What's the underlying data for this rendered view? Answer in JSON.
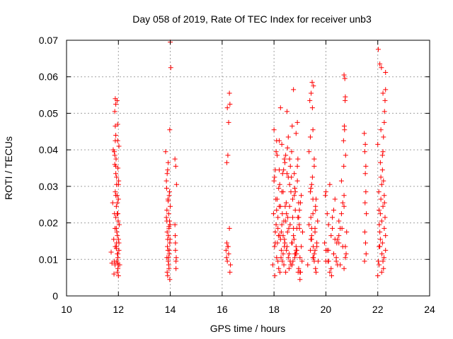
{
  "chart_data": {
    "type": "scatter",
    "title": "Day 058 of 2019, Rate Of TEC Index for receiver unb3",
    "xlabel": "GPS time / hours",
    "ylabel": "ROTI / TECUs",
    "xlim": [
      10,
      24
    ],
    "ylim": [
      0,
      0.07
    ],
    "x_ticks": [
      "10",
      "12",
      "14",
      "16",
      "18",
      "20",
      "22",
      "24"
    ],
    "y_ticks": [
      "0",
      "0.01",
      "0.02",
      "0.03",
      "0.04",
      "0.05",
      "0.06",
      "0.07"
    ],
    "grid": true,
    "marker": "+",
    "color": "#ff0000",
    "series": [
      {
        "name": "ROTI",
        "x": [
          11.72,
          11.75,
          11.78,
          11.8,
          11.82,
          11.83,
          11.85,
          11.86,
          11.87,
          11.88,
          11.9,
          11.9,
          11.92,
          11.93,
          11.95,
          11.96,
          11.97,
          11.98,
          12.0,
          12.0,
          12.02,
          12.03,
          12.05,
          11.86,
          11.88,
          11.9,
          11.92,
          11.94,
          11.96,
          11.98,
          12.0,
          12.02,
          11.84,
          11.86,
          11.88,
          11.9,
          11.92,
          11.94,
          11.96,
          11.98,
          12.0,
          12.02,
          11.88,
          11.9,
          11.92,
          11.95,
          11.98,
          12.0,
          11.9,
          11.93,
          11.96,
          11.99,
          11.85,
          11.88,
          11.91,
          11.95,
          11.97,
          12.01,
          11.87,
          11.93,
          11.96,
          11.98,
          13.82,
          13.85,
          13.87,
          13.88,
          13.9,
          13.92,
          13.94,
          13.95,
          13.96,
          13.98,
          14.0,
          14.02,
          13.86,
          13.88,
          13.9,
          13.92,
          13.94,
          13.96,
          13.98,
          14.0,
          13.85,
          13.87,
          13.89,
          13.91,
          13.93,
          13.95,
          13.97,
          13.99,
          13.88,
          13.9,
          13.93,
          13.96,
          13.99,
          13.87,
          13.91,
          13.95,
          13.98,
          13.92,
          14.18,
          14.2,
          14.22,
          14.24,
          14.2,
          14.22,
          14.18,
          14.23,
          14.21,
          14.19,
          13.97,
          16.15,
          16.18,
          16.2,
          16.22,
          16.25,
          16.28,
          16.18,
          16.22,
          16.25,
          16.2,
          16.3,
          16.28,
          16.32,
          16.17,
          16.23,
          16.3,
          17.95,
          17.98,
          18.0,
          18.02,
          18.05,
          18.08,
          18.1,
          18.12,
          18.15,
          18.18,
          18.2,
          18.22,
          18.25,
          18.28,
          18.3,
          18.32,
          18.35,
          18.38,
          18.4,
          18.42,
          18.45,
          18.48,
          18.5,
          18.52,
          18.55,
          18.58,
          18.6,
          18.62,
          18.65,
          18.68,
          18.7,
          18.72,
          18.75,
          18.78,
          18.8,
          18.82,
          18.85,
          18.88,
          18.9,
          18.92,
          18.95,
          18.98,
          19.0,
          19.02,
          19.05,
          19.08,
          19.1,
          18.0,
          18.05,
          18.1,
          18.15,
          18.2,
          18.25,
          18.3,
          18.35,
          18.4,
          18.45,
          18.5,
          18.55,
          18.6,
          18.65,
          18.7,
          18.75,
          18.8,
          18.85,
          18.9,
          18.95,
          19.0,
          19.05,
          18.02,
          18.07,
          18.12,
          18.17,
          18.22,
          18.27,
          18.32,
          18.37,
          18.42,
          18.47,
          18.52,
          18.57,
          18.62,
          18.67,
          18.72,
          18.77,
          18.82,
          18.87,
          18.92,
          18.97,
          19.02,
          18.03,
          18.08,
          18.13,
          18.18,
          18.23,
          18.28,
          18.33,
          18.38,
          18.43,
          18.48,
          18.53,
          18.58,
          18.63,
          18.68,
          18.73,
          18.78,
          18.83,
          18.88,
          18.93,
          18.98,
          18.05,
          18.15,
          18.25,
          18.35,
          18.45,
          18.55,
          18.65,
          18.75,
          18.85,
          18.95,
          18.1,
          18.3,
          18.5,
          18.7,
          18.9,
          18.2,
          18.4,
          18.6,
          18.8,
          19.0,
          19.3,
          19.35,
          19.4,
          19.42,
          19.45,
          19.48,
          19.5,
          19.52,
          19.55,
          19.58,
          19.6,
          19.62,
          19.65,
          19.68,
          19.7,
          19.35,
          19.4,
          19.45,
          19.5,
          19.55,
          19.6,
          19.65,
          19.38,
          19.42,
          19.48,
          19.52,
          19.58,
          19.62,
          19.4,
          19.45,
          19.5,
          19.55,
          19.6,
          19.42,
          19.5,
          19.58,
          19.43,
          19.47,
          19.51,
          19.55,
          19.45,
          19.95,
          20.0,
          20.05,
          20.1,
          20.15,
          20.2,
          20.25,
          20.3,
          20.35,
          20.4,
          20.45,
          20.5,
          20.55,
          20.6,
          20.65,
          20.7,
          20.75,
          20.8,
          20.0,
          20.1,
          20.2,
          20.3,
          20.4,
          20.5,
          20.6,
          20.7,
          20.05,
          20.15,
          20.25,
          20.35,
          20.45,
          20.55,
          20.65,
          20.75,
          20.1,
          20.3,
          20.5,
          20.7,
          19.98,
          20.22,
          20.42,
          20.62,
          20.78,
          20.68,
          20.72,
          20.74,
          20.7,
          20.73,
          20.76,
          20.69,
          20.71,
          20.75,
          20.0,
          20.08,
          21.48,
          21.5,
          21.52,
          21.54,
          21.56,
          21.5,
          21.53,
          21.55,
          21.49,
          21.51,
          21.54,
          21.52,
          22.0,
          22.02,
          22.05,
          22.08,
          22.1,
          22.12,
          22.15,
          22.18,
          22.2,
          22.22,
          22.25,
          22.28,
          22.3,
          22.05,
          22.1,
          22.15,
          22.2,
          22.25,
          22.3,
          22.02,
          22.08,
          22.14,
          22.2,
          22.26,
          22.04,
          22.12,
          22.18,
          22.24,
          22.06,
          22.16,
          22.22,
          22.28,
          22.0,
          22.1,
          22.2,
          22.3,
          22.05,
          22.15,
          22.25,
          22.08,
          22.12,
          22.18,
          22.22,
          22.26,
          22.3
        ],
        "y": [
          0.012,
          0.009,
          0.0255,
          0.04,
          0.0155,
          0.006,
          0.0095,
          0.036,
          0.0185,
          0.054,
          0.0275,
          0.044,
          0.013,
          0.0305,
          0.0225,
          0.009,
          0.047,
          0.035,
          0.0155,
          0.0265,
          0.041,
          0.0195,
          0.0085,
          0.0505,
          0.0425,
          0.0335,
          0.0245,
          0.0175,
          0.0115,
          0.0075,
          0.0055,
          0.0145,
          0.0395,
          0.0385,
          0.0285,
          0.0215,
          0.0135,
          0.0095,
          0.0065,
          0.0225,
          0.0305,
          0.0125,
          0.0465,
          0.0355,
          0.0185,
          0.0275,
          0.0105,
          0.0085,
          0.0525,
          0.0325,
          0.0165,
          0.0205,
          0.0225,
          0.0135,
          0.0375,
          0.0535,
          0.0425,
          0.0315,
          0.0085,
          0.0145,
          0.0255,
          0.0115,
          0.0395,
          0.0215,
          0.0105,
          0.0335,
          0.0155,
          0.026,
          0.0085,
          0.019,
          0.0125,
          0.0455,
          0.0695,
          0.0625,
          0.0295,
          0.0175,
          0.0055,
          0.0365,
          0.0225,
          0.0115,
          0.0145,
          0.0245,
          0.0315,
          0.0205,
          0.0135,
          0.0265,
          0.0165,
          0.0075,
          0.0285,
          0.0195,
          0.0065,
          0.0345,
          0.0105,
          0.0275,
          0.0155,
          0.0235,
          0.0125,
          0.0185,
          0.0045,
          0.0095,
          0.0375,
          0.0145,
          0.0095,
          0.0305,
          0.0125,
          0.0075,
          0.0195,
          0.0105,
          0.0355,
          0.0165,
          0.0205,
          0.0125,
          0.0145,
          0.0095,
          0.0135,
          0.0115,
          0.0185,
          0.0365,
          0.0385,
          0.0475,
          0.0515,
          0.0525,
          0.0555,
          0.0085,
          0.0105,
          0.0135,
          0.0065,
          0.0085,
          0.0225,
          0.0455,
          0.0325,
          0.0145,
          0.0395,
          0.0105,
          0.0265,
          0.0185,
          0.0075,
          0.0345,
          0.0165,
          0.0245,
          0.0125,
          0.0415,
          0.0095,
          0.0285,
          0.0205,
          0.0135,
          0.0365,
          0.0065,
          0.0225,
          0.0505,
          0.0175,
          0.0435,
          0.0115,
          0.0305,
          0.0195,
          0.0085,
          0.0395,
          0.0145,
          0.0265,
          0.0165,
          0.0335,
          0.0105,
          0.0235,
          0.0445,
          0.0125,
          0.0315,
          0.0215,
          0.0075,
          0.0185,
          0.0045,
          0.0255,
          0.0135,
          0.0095,
          0.0175,
          0.0315,
          0.0175,
          0.0235,
          0.0095,
          0.0425,
          0.0155,
          0.0285,
          0.0115,
          0.0375,
          0.0205,
          0.0135,
          0.0325,
          0.0245,
          0.0085,
          0.0465,
          0.0185,
          0.0295,
          0.0125,
          0.0355,
          0.0215,
          0.0105,
          0.0275,
          0.0135,
          0.0265,
          0.0385,
          0.0165,
          0.0305,
          0.0105,
          0.0225,
          0.0345,
          0.0145,
          0.0255,
          0.0405,
          0.0185,
          0.0095,
          0.0325,
          0.0215,
          0.0155,
          0.0285,
          0.0115,
          0.0375,
          0.0195,
          0.0065,
          0.0055,
          0.0195,
          0.0145,
          0.0295,
          0.0065,
          0.0175,
          0.0335,
          0.0085,
          0.0245,
          0.0125,
          0.0215,
          0.0075,
          0.0355,
          0.0145,
          0.0095,
          0.0275,
          0.0115,
          0.0185,
          0.0065,
          0.0235,
          0.0345,
          0.0215,
          0.0515,
          0.0165,
          0.0385,
          0.0105,
          0.0285,
          0.0565,
          0.0135,
          0.0255,
          0.0425,
          0.0195,
          0.0335,
          0.0085,
          0.0475,
          0.0245,
          0.0155,
          0.0375,
          0.0115,
          0.0065,
          0.0085,
          0.0195,
          0.0125,
          0.0295,
          0.0155,
          0.0515,
          0.0225,
          0.0105,
          0.0355,
          0.0175,
          0.0075,
          0.0265,
          0.0135,
          0.0205,
          0.0095,
          0.0395,
          0.0285,
          0.0165,
          0.0455,
          0.0115,
          0.0245,
          0.0145,
          0.0535,
          0.0215,
          0.0325,
          0.0575,
          0.0185,
          0.0065,
          0.0435,
          0.0305,
          0.0105,
          0.0375,
          0.0235,
          0.0155,
          0.0265,
          0.0125,
          0.0555,
          0.0585,
          0.0135,
          0.0095,
          0.0185,
          0.0145,
          0.0095,
          0.0225,
          0.0125,
          0.0305,
          0.0075,
          0.0185,
          0.0115,
          0.0265,
          0.0095,
          0.0155,
          0.0205,
          0.0085,
          0.0315,
          0.0135,
          0.0245,
          0.0105,
          0.0175,
          0.0285,
          0.0195,
          0.0165,
          0.0235,
          0.0105,
          0.0145,
          0.0225,
          0.0275,
          0.0125,
          0.0065,
          0.0215,
          0.0155,
          0.0085,
          0.0185,
          0.0255,
          0.0135,
          0.0095,
          0.0115,
          0.0165,
          0.0075,
          0.0275,
          0.0055,
          0.0145,
          0.0185,
          0.0115,
          0.0425,
          0.0455,
          0.0535,
          0.0605,
          0.0595,
          0.0385,
          0.0355,
          0.0465,
          0.0545,
          0.0125,
          0.0095,
          0.0445,
          0.0395,
          0.0335,
          0.0285,
          0.0225,
          0.0175,
          0.0145,
          0.0115,
          0.0095,
          0.0255,
          0.0355,
          0.0415,
          0.0055,
          0.0095,
          0.0135,
          0.0175,
          0.0225,
          0.0265,
          0.0305,
          0.0345,
          0.0395,
          0.0435,
          0.0475,
          0.0535,
          0.0565,
          0.0085,
          0.0155,
          0.0205,
          0.0245,
          0.0185,
          0.0125,
          0.0675,
          0.0635,
          0.0625,
          0.0555,
          0.0505,
          0.0285,
          0.0325,
          0.0145,
          0.0105,
          0.0195,
          0.0115,
          0.0075,
          0.0215,
          0.0415,
          0.0365,
          0.0095,
          0.0165,
          0.0235,
          0.0065,
          0.0275,
          0.0135,
          0.0455,
          0.0385,
          0.0315,
          0.0255,
          0.0612
        ]
      }
    ]
  }
}
